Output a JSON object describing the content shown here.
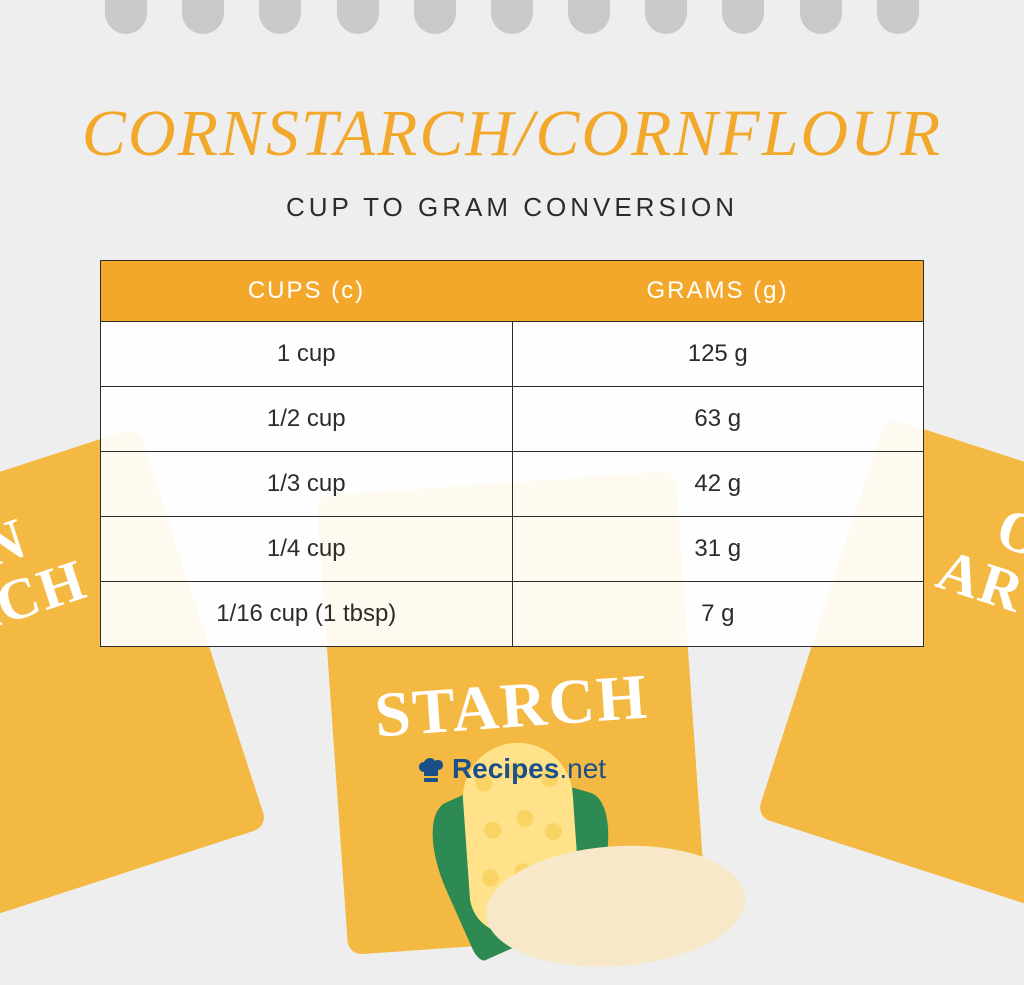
{
  "title": "CORNSTARCH/CORNFLOUR",
  "subtitle": "CUP TO GRAM CONVERSION",
  "table": {
    "header_bg": "#f3a82c",
    "header_color": "#ffffff",
    "border_color": "#2c2c2c",
    "row_bg": "rgba(255,255,255,0.92)",
    "text_color": "#2c2c2c",
    "font_size": 24,
    "columns": [
      "CUPS (c)",
      "GRAMS (g)"
    ],
    "rows": [
      [
        "1 cup",
        "125 g"
      ],
      [
        "1/2 cup",
        "63 g"
      ],
      [
        "1/3 cup",
        "42 g"
      ],
      [
        "1/4 cup",
        "31 g"
      ],
      [
        "1/16 cup (1 tbsp)",
        "7 g"
      ]
    ]
  },
  "brand": {
    "name": "Recipes",
    "tld": ".net",
    "color": "#1b4f87"
  },
  "decor": {
    "box_color": "#f4b942",
    "box_text_left": "ORN\nARCH",
    "box_text_right": "ORN\nARCH",
    "box_text_center": "STARCH",
    "leaf_color": "#2d8a52",
    "cob_color": "#ffe28a",
    "pile_color": "#f6e8c8"
  },
  "colors": {
    "page_bg": "#eeeeee",
    "binding": "#c9c9c9",
    "title": "#f2a82a",
    "subtitle": "#2c2c2c"
  },
  "binding_holes": 11
}
